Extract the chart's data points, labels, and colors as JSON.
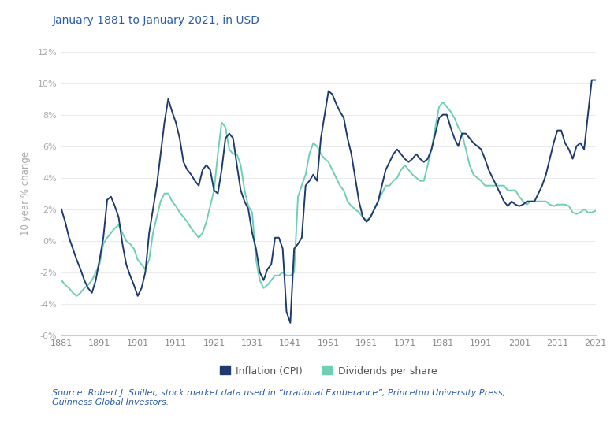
{
  "title": "January 1881 to January 2021, in USD",
  "ylabel": "10 year % change",
  "source_text": "Source: Robert J. Shiller, stock market data used in “Irrational Exuberance”, Princeton University Press,\nGuinness Global Investors.",
  "ylim": [
    -6,
    12
  ],
  "yticks": [
    -6,
    -4,
    -2,
    0,
    2,
    4,
    6,
    8,
    10,
    12
  ],
  "xticks": [
    1881,
    1891,
    1901,
    1911,
    1921,
    1931,
    1941,
    1951,
    1961,
    1971,
    1981,
    1991,
    2001,
    2011,
    2021
  ],
  "color_cpi": "#1e3a6e",
  "color_div": "#6ecfb5",
  "title_color": "#2a5caa",
  "source_color": "#2a5caa",
  "legend_labels": [
    "Inflation (CPI)",
    "Dividends per share"
  ],
  "cpi_data": [
    [
      1881,
      2.0
    ],
    [
      1882,
      1.2
    ],
    [
      1883,
      0.2
    ],
    [
      1884,
      -0.5
    ],
    [
      1885,
      -1.2
    ],
    [
      1886,
      -1.8
    ],
    [
      1887,
      -2.5
    ],
    [
      1888,
      -3.0
    ],
    [
      1889,
      -3.3
    ],
    [
      1890,
      -2.5
    ],
    [
      1891,
      -1.2
    ],
    [
      1892,
      0.2
    ],
    [
      1893,
      2.6
    ],
    [
      1894,
      2.8
    ],
    [
      1895,
      2.2
    ],
    [
      1896,
      1.5
    ],
    [
      1897,
      -0.2
    ],
    [
      1898,
      -1.5
    ],
    [
      1899,
      -2.2
    ],
    [
      1900,
      -2.8
    ],
    [
      1901,
      -3.5
    ],
    [
      1902,
      -3.0
    ],
    [
      1903,
      -2.0
    ],
    [
      1904,
      0.5
    ],
    [
      1905,
      2.0
    ],
    [
      1906,
      3.5
    ],
    [
      1907,
      5.5
    ],
    [
      1908,
      7.5
    ],
    [
      1909,
      9.0
    ],
    [
      1910,
      8.2
    ],
    [
      1911,
      7.5
    ],
    [
      1912,
      6.5
    ],
    [
      1913,
      5.0
    ],
    [
      1914,
      4.5
    ],
    [
      1915,
      4.2
    ],
    [
      1916,
      3.8
    ],
    [
      1917,
      3.5
    ],
    [
      1918,
      4.5
    ],
    [
      1919,
      4.8
    ],
    [
      1920,
      4.5
    ],
    [
      1921,
      3.2
    ],
    [
      1922,
      3.0
    ],
    [
      1923,
      4.5
    ],
    [
      1924,
      6.5
    ],
    [
      1925,
      6.8
    ],
    [
      1926,
      6.5
    ],
    [
      1927,
      4.8
    ],
    [
      1928,
      3.2
    ],
    [
      1929,
      2.5
    ],
    [
      1930,
      2.0
    ],
    [
      1931,
      0.5
    ],
    [
      1932,
      -0.5
    ],
    [
      1933,
      -2.0
    ],
    [
      1934,
      -2.5
    ],
    [
      1935,
      -1.8
    ],
    [
      1936,
      -1.5
    ],
    [
      1937,
      0.2
    ],
    [
      1938,
      0.2
    ],
    [
      1939,
      -0.5
    ],
    [
      1940,
      -4.5
    ],
    [
      1941,
      -5.2
    ],
    [
      1942,
      -0.5
    ],
    [
      1943,
      -0.2
    ],
    [
      1944,
      0.2
    ],
    [
      1945,
      3.5
    ],
    [
      1946,
      3.8
    ],
    [
      1947,
      4.2
    ],
    [
      1948,
      3.8
    ],
    [
      1949,
      6.5
    ],
    [
      1950,
      8.0
    ],
    [
      1951,
      9.5
    ],
    [
      1952,
      9.3
    ],
    [
      1953,
      8.7
    ],
    [
      1954,
      8.2
    ],
    [
      1955,
      7.8
    ],
    [
      1956,
      6.5
    ],
    [
      1957,
      5.5
    ],
    [
      1958,
      4.0
    ],
    [
      1959,
      2.5
    ],
    [
      1960,
      1.5
    ],
    [
      1961,
      1.2
    ],
    [
      1962,
      1.5
    ],
    [
      1963,
      2.0
    ],
    [
      1964,
      2.5
    ],
    [
      1965,
      3.5
    ],
    [
      1966,
      4.5
    ],
    [
      1967,
      5.0
    ],
    [
      1968,
      5.5
    ],
    [
      1969,
      5.8
    ],
    [
      1970,
      5.5
    ],
    [
      1971,
      5.2
    ],
    [
      1972,
      5.0
    ],
    [
      1973,
      5.2
    ],
    [
      1974,
      5.5
    ],
    [
      1975,
      5.2
    ],
    [
      1976,
      5.0
    ],
    [
      1977,
      5.2
    ],
    [
      1978,
      5.8
    ],
    [
      1979,
      6.8
    ],
    [
      1980,
      7.8
    ],
    [
      1981,
      8.0
    ],
    [
      1982,
      8.0
    ],
    [
      1983,
      7.2
    ],
    [
      1984,
      6.5
    ],
    [
      1985,
      6.0
    ],
    [
      1986,
      6.8
    ],
    [
      1987,
      6.8
    ],
    [
      1988,
      6.5
    ],
    [
      1989,
      6.2
    ],
    [
      1990,
      6.0
    ],
    [
      1991,
      5.8
    ],
    [
      1992,
      5.2
    ],
    [
      1993,
      4.5
    ],
    [
      1994,
      4.0
    ],
    [
      1995,
      3.5
    ],
    [
      1996,
      3.0
    ],
    [
      1997,
      2.5
    ],
    [
      1998,
      2.2
    ],
    [
      1999,
      2.5
    ],
    [
      2000,
      2.3
    ],
    [
      2001,
      2.2
    ],
    [
      2002,
      2.3
    ],
    [
      2003,
      2.5
    ],
    [
      2004,
      2.5
    ],
    [
      2005,
      2.5
    ],
    [
      2006,
      3.0
    ],
    [
      2007,
      3.5
    ],
    [
      2008,
      4.2
    ],
    [
      2009,
      5.2
    ],
    [
      2010,
      6.2
    ],
    [
      2011,
      7.0
    ],
    [
      2012,
      7.0
    ],
    [
      2013,
      6.2
    ],
    [
      2014,
      5.8
    ],
    [
      2015,
      5.2
    ],
    [
      2016,
      6.0
    ],
    [
      2017,
      6.2
    ],
    [
      2018,
      5.8
    ],
    [
      2019,
      8.0
    ],
    [
      2020,
      10.2
    ],
    [
      2021,
      10.2
    ]
  ],
  "div_data": [
    [
      1881,
      -2.5
    ],
    [
      1882,
      -2.8
    ],
    [
      1883,
      -3.0
    ],
    [
      1884,
      -3.3
    ],
    [
      1885,
      -3.5
    ],
    [
      1886,
      -3.3
    ],
    [
      1887,
      -3.0
    ],
    [
      1888,
      -2.8
    ],
    [
      1889,
      -2.5
    ],
    [
      1890,
      -2.0
    ],
    [
      1891,
      -1.5
    ],
    [
      1892,
      -0.2
    ],
    [
      1893,
      0.2
    ],
    [
      1894,
      0.5
    ],
    [
      1895,
      0.8
    ],
    [
      1896,
      1.0
    ],
    [
      1897,
      0.5
    ],
    [
      1898,
      0.0
    ],
    [
      1899,
      -0.2
    ],
    [
      1900,
      -0.5
    ],
    [
      1901,
      -1.2
    ],
    [
      1902,
      -1.5
    ],
    [
      1903,
      -1.8
    ],
    [
      1904,
      -1.2
    ],
    [
      1905,
      0.5
    ],
    [
      1906,
      1.5
    ],
    [
      1907,
      2.5
    ],
    [
      1908,
      3.0
    ],
    [
      1909,
      3.0
    ],
    [
      1910,
      2.5
    ],
    [
      1911,
      2.2
    ],
    [
      1912,
      1.8
    ],
    [
      1913,
      1.5
    ],
    [
      1914,
      1.2
    ],
    [
      1915,
      0.8
    ],
    [
      1916,
      0.5
    ],
    [
      1917,
      0.2
    ],
    [
      1918,
      0.5
    ],
    [
      1919,
      1.2
    ],
    [
      1920,
      2.2
    ],
    [
      1921,
      3.2
    ],
    [
      1922,
      5.5
    ],
    [
      1923,
      7.5
    ],
    [
      1924,
      7.2
    ],
    [
      1925,
      5.8
    ],
    [
      1926,
      5.5
    ],
    [
      1927,
      5.5
    ],
    [
      1928,
      4.8
    ],
    [
      1929,
      3.2
    ],
    [
      1930,
      2.2
    ],
    [
      1931,
      1.8
    ],
    [
      1932,
      -1.2
    ],
    [
      1933,
      -2.5
    ],
    [
      1934,
      -3.0
    ],
    [
      1935,
      -2.8
    ],
    [
      1936,
      -2.5
    ],
    [
      1937,
      -2.2
    ],
    [
      1938,
      -2.2
    ],
    [
      1939,
      -2.0
    ],
    [
      1940,
      -2.2
    ],
    [
      1941,
      -2.2
    ],
    [
      1942,
      -2.0
    ],
    [
      1943,
      2.8
    ],
    [
      1944,
      3.5
    ],
    [
      1945,
      4.2
    ],
    [
      1946,
      5.5
    ],
    [
      1947,
      6.2
    ],
    [
      1948,
      6.0
    ],
    [
      1949,
      5.5
    ],
    [
      1950,
      5.2
    ],
    [
      1951,
      5.0
    ],
    [
      1952,
      4.5
    ],
    [
      1953,
      4.0
    ],
    [
      1954,
      3.5
    ],
    [
      1955,
      3.2
    ],
    [
      1956,
      2.5
    ],
    [
      1957,
      2.2
    ],
    [
      1958,
      2.0
    ],
    [
      1959,
      1.8
    ],
    [
      1960,
      1.5
    ],
    [
      1961,
      1.3
    ],
    [
      1962,
      1.5
    ],
    [
      1963,
      2.0
    ],
    [
      1964,
      2.5
    ],
    [
      1965,
      3.0
    ],
    [
      1966,
      3.5
    ],
    [
      1967,
      3.5
    ],
    [
      1968,
      3.8
    ],
    [
      1969,
      4.0
    ],
    [
      1970,
      4.5
    ],
    [
      1971,
      4.8
    ],
    [
      1972,
      4.5
    ],
    [
      1973,
      4.2
    ],
    [
      1974,
      4.0
    ],
    [
      1975,
      3.8
    ],
    [
      1976,
      3.8
    ],
    [
      1977,
      4.8
    ],
    [
      1978,
      5.8
    ],
    [
      1979,
      7.2
    ],
    [
      1980,
      8.5
    ],
    [
      1981,
      8.8
    ],
    [
      1982,
      8.5
    ],
    [
      1983,
      8.2
    ],
    [
      1984,
      7.8
    ],
    [
      1985,
      7.2
    ],
    [
      1986,
      6.8
    ],
    [
      1987,
      5.8
    ],
    [
      1988,
      4.8
    ],
    [
      1989,
      4.2
    ],
    [
      1990,
      4.0
    ],
    [
      1991,
      3.8
    ],
    [
      1992,
      3.5
    ],
    [
      1993,
      3.5
    ],
    [
      1994,
      3.5
    ],
    [
      1995,
      3.5
    ],
    [
      1996,
      3.5
    ],
    [
      1997,
      3.5
    ],
    [
      1998,
      3.2
    ],
    [
      1999,
      3.2
    ],
    [
      2000,
      3.2
    ],
    [
      2001,
      2.8
    ],
    [
      2002,
      2.5
    ],
    [
      2003,
      2.3
    ],
    [
      2004,
      2.5
    ],
    [
      2005,
      2.5
    ],
    [
      2006,
      2.5
    ],
    [
      2007,
      2.5
    ],
    [
      2008,
      2.5
    ],
    [
      2009,
      2.3
    ],
    [
      2010,
      2.2
    ],
    [
      2011,
      2.3
    ],
    [
      2012,
      2.3
    ],
    [
      2013,
      2.3
    ],
    [
      2014,
      2.2
    ],
    [
      2015,
      1.8
    ],
    [
      2016,
      1.7
    ],
    [
      2017,
      1.8
    ],
    [
      2018,
      2.0
    ],
    [
      2019,
      1.8
    ],
    [
      2020,
      1.8
    ],
    [
      2021,
      1.9
    ]
  ]
}
